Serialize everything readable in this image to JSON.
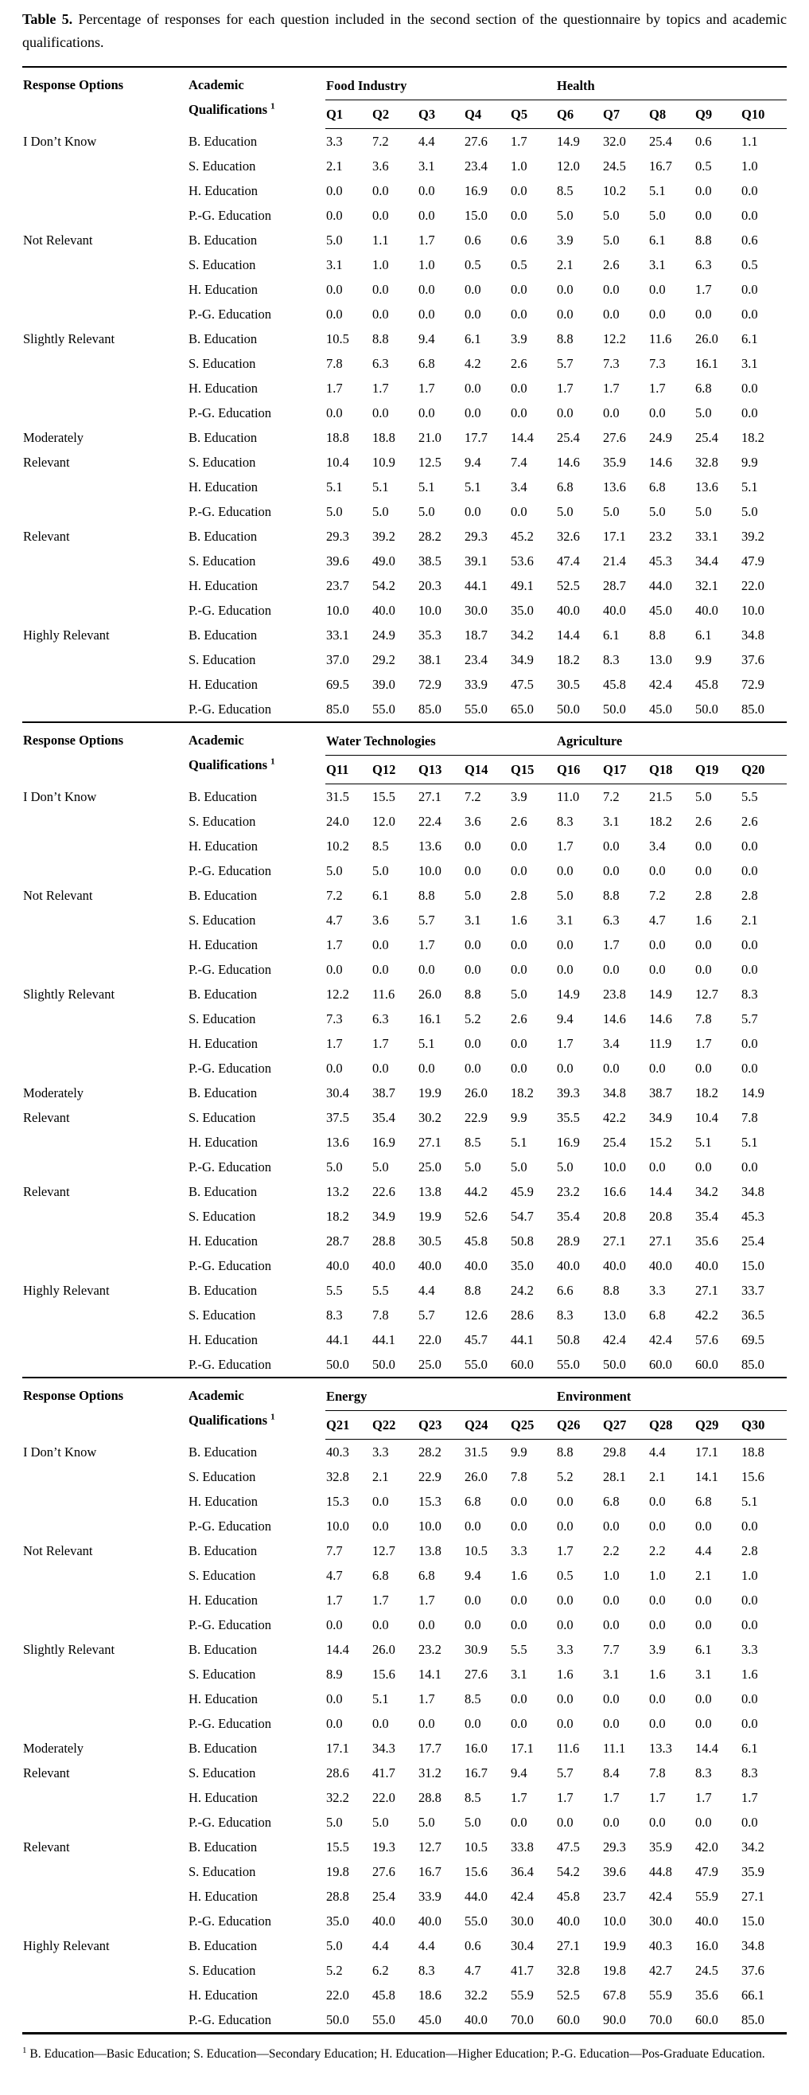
{
  "title": {
    "label": "Table 5.",
    "text": "Percentage of responses for each question included in the second section of the questionnaire by topics and academic qualifications."
  },
  "header": {
    "col1": "Response Options",
    "col2_line1": "Academic",
    "col2_line2": "Qualifications",
    "col2_superscript": "1"
  },
  "response_options": [
    {
      "label": "I Don’t Know",
      "lines": [
        "I Don’t Know"
      ]
    },
    {
      "label": "Not Relevant",
      "lines": [
        "Not Relevant"
      ]
    },
    {
      "label": "Slightly Relevant",
      "lines": [
        "Slightly Relevant"
      ]
    },
    {
      "label": "Moderately Relevant",
      "lines": [
        "Moderately",
        "Relevant"
      ]
    },
    {
      "label": "Relevant",
      "lines": [
        "Relevant"
      ]
    },
    {
      "label": "Highly Relevant",
      "lines": [
        "Highly Relevant"
      ]
    }
  ],
  "qualifications": [
    "B. Education",
    "S. Education",
    "H. Education",
    "P.-G. Education"
  ],
  "sections": [
    {
      "groups": [
        {
          "name": "Food Industry",
          "questions": [
            "Q1",
            "Q2",
            "Q3",
            "Q4",
            "Q5"
          ]
        },
        {
          "name": "Health",
          "questions": [
            "Q6",
            "Q7",
            "Q8",
            "Q9",
            "Q10"
          ]
        }
      ],
      "rows": [
        [
          [
            "3.3",
            "7.2",
            "4.4",
            "27.6",
            "1.7",
            "14.9",
            "32.0",
            "25.4",
            "0.6",
            "1.1"
          ],
          [
            "2.1",
            "3.6",
            "3.1",
            "23.4",
            "1.0",
            "12.0",
            "24.5",
            "16.7",
            "0.5",
            "1.0"
          ],
          [
            "0.0",
            "0.0",
            "0.0",
            "16.9",
            "0.0",
            "8.5",
            "10.2",
            "5.1",
            "0.0",
            "0.0"
          ],
          [
            "0.0",
            "0.0",
            "0.0",
            "15.0",
            "0.0",
            "5.0",
            "5.0",
            "5.0",
            "0.0",
            "0.0"
          ]
        ],
        [
          [
            "5.0",
            "1.1",
            "1.7",
            "0.6",
            "0.6",
            "3.9",
            "5.0",
            "6.1",
            "8.8",
            "0.6"
          ],
          [
            "3.1",
            "1.0",
            "1.0",
            "0.5",
            "0.5",
            "2.1",
            "2.6",
            "3.1",
            "6.3",
            "0.5"
          ],
          [
            "0.0",
            "0.0",
            "0.0",
            "0.0",
            "0.0",
            "0.0",
            "0.0",
            "0.0",
            "1.7",
            "0.0"
          ],
          [
            "0.0",
            "0.0",
            "0.0",
            "0.0",
            "0.0",
            "0.0",
            "0.0",
            "0.0",
            "0.0",
            "0.0"
          ]
        ],
        [
          [
            "10.5",
            "8.8",
            "9.4",
            "6.1",
            "3.9",
            "8.8",
            "12.2",
            "11.6",
            "26.0",
            "6.1"
          ],
          [
            "7.8",
            "6.3",
            "6.8",
            "4.2",
            "2.6",
            "5.7",
            "7.3",
            "7.3",
            "16.1",
            "3.1"
          ],
          [
            "1.7",
            "1.7",
            "1.7",
            "0.0",
            "0.0",
            "1.7",
            "1.7",
            "1.7",
            "6.8",
            "0.0"
          ],
          [
            "0.0",
            "0.0",
            "0.0",
            "0.0",
            "0.0",
            "0.0",
            "0.0",
            "0.0",
            "5.0",
            "0.0"
          ]
        ],
        [
          [
            "18.8",
            "18.8",
            "21.0",
            "17.7",
            "14.4",
            "25.4",
            "27.6",
            "24.9",
            "25.4",
            "18.2"
          ],
          [
            "10.4",
            "10.9",
            "12.5",
            "9.4",
            "7.4",
            "14.6",
            "35.9",
            "14.6",
            "32.8",
            "9.9"
          ],
          [
            "5.1",
            "5.1",
            "5.1",
            "5.1",
            "3.4",
            "6.8",
            "13.6",
            "6.8",
            "13.6",
            "5.1"
          ],
          [
            "5.0",
            "5.0",
            "5.0",
            "0.0",
            "0.0",
            "5.0",
            "5.0",
            "5.0",
            "5.0",
            "5.0"
          ]
        ],
        [
          [
            "29.3",
            "39.2",
            "28.2",
            "29.3",
            "45.2",
            "32.6",
            "17.1",
            "23.2",
            "33.1",
            "39.2"
          ],
          [
            "39.6",
            "49.0",
            "38.5",
            "39.1",
            "53.6",
            "47.4",
            "21.4",
            "45.3",
            "34.4",
            "47.9"
          ],
          [
            "23.7",
            "54.2",
            "20.3",
            "44.1",
            "49.1",
            "52.5",
            "28.7",
            "44.0",
            "32.1",
            "22.0"
          ],
          [
            "10.0",
            "40.0",
            "10.0",
            "30.0",
            "35.0",
            "40.0",
            "40.0",
            "45.0",
            "40.0",
            "10.0"
          ]
        ],
        [
          [
            "33.1",
            "24.9",
            "35.3",
            "18.7",
            "34.2",
            "14.4",
            "6.1",
            "8.8",
            "6.1",
            "34.8"
          ],
          [
            "37.0",
            "29.2",
            "38.1",
            "23.4",
            "34.9",
            "18.2",
            "8.3",
            "13.0",
            "9.9",
            "37.6"
          ],
          [
            "69.5",
            "39.0",
            "72.9",
            "33.9",
            "47.5",
            "30.5",
            "45.8",
            "42.4",
            "45.8",
            "72.9"
          ],
          [
            "85.0",
            "55.0",
            "85.0",
            "55.0",
            "65.0",
            "50.0",
            "50.0",
            "45.0",
            "50.0",
            "85.0"
          ]
        ]
      ]
    },
    {
      "groups": [
        {
          "name": "Water Technologies",
          "questions": [
            "Q11",
            "Q12",
            "Q13",
            "Q14",
            "Q15"
          ]
        },
        {
          "name": "Agriculture",
          "questions": [
            "Q16",
            "Q17",
            "Q18",
            "Q19",
            "Q20"
          ]
        }
      ],
      "rows": [
        [
          [
            "31.5",
            "15.5",
            "27.1",
            "7.2",
            "3.9",
            "11.0",
            "7.2",
            "21.5",
            "5.0",
            "5.5"
          ],
          [
            "24.0",
            "12.0",
            "22.4",
            "3.6",
            "2.6",
            "8.3",
            "3.1",
            "18.2",
            "2.6",
            "2.6"
          ],
          [
            "10.2",
            "8.5",
            "13.6",
            "0.0",
            "0.0",
            "1.7",
            "0.0",
            "3.4",
            "0.0",
            "0.0"
          ],
          [
            "5.0",
            "5.0",
            "10.0",
            "0.0",
            "0.0",
            "0.0",
            "0.0",
            "0.0",
            "0.0",
            "0.0"
          ]
        ],
        [
          [
            "7.2",
            "6.1",
            "8.8",
            "5.0",
            "2.8",
            "5.0",
            "8.8",
            "7.2",
            "2.8",
            "2.8"
          ],
          [
            "4.7",
            "3.6",
            "5.7",
            "3.1",
            "1.6",
            "3.1",
            "6.3",
            "4.7",
            "1.6",
            "2.1"
          ],
          [
            "1.7",
            "0.0",
            "1.7",
            "0.0",
            "0.0",
            "0.0",
            "1.7",
            "0.0",
            "0.0",
            "0.0"
          ],
          [
            "0.0",
            "0.0",
            "0.0",
            "0.0",
            "0.0",
            "0.0",
            "0.0",
            "0.0",
            "0.0",
            "0.0"
          ]
        ],
        [
          [
            "12.2",
            "11.6",
            "26.0",
            "8.8",
            "5.0",
            "14.9",
            "23.8",
            "14.9",
            "12.7",
            "8.3"
          ],
          [
            "7.3",
            "6.3",
            "16.1",
            "5.2",
            "2.6",
            "9.4",
            "14.6",
            "14.6",
            "7.8",
            "5.7"
          ],
          [
            "1.7",
            "1.7",
            "5.1",
            "0.0",
            "0.0",
            "1.7",
            "3.4",
            "11.9",
            "1.7",
            "0.0"
          ],
          [
            "0.0",
            "0.0",
            "0.0",
            "0.0",
            "0.0",
            "0.0",
            "0.0",
            "0.0",
            "0.0",
            "0.0"
          ]
        ],
        [
          [
            "30.4",
            "38.7",
            "19.9",
            "26.0",
            "18.2",
            "39.3",
            "34.8",
            "38.7",
            "18.2",
            "14.9"
          ],
          [
            "37.5",
            "35.4",
            "30.2",
            "22.9",
            "9.9",
            "35.5",
            "42.2",
            "34.9",
            "10.4",
            "7.8"
          ],
          [
            "13.6",
            "16.9",
            "27.1",
            "8.5",
            "5.1",
            "16.9",
            "25.4",
            "15.2",
            "5.1",
            "5.1"
          ],
          [
            "5.0",
            "5.0",
            "25.0",
            "5.0",
            "5.0",
            "5.0",
            "10.0",
            "0.0",
            "0.0",
            "0.0"
          ]
        ],
        [
          [
            "13.2",
            "22.6",
            "13.8",
            "44.2",
            "45.9",
            "23.2",
            "16.6",
            "14.4",
            "34.2",
            "34.8"
          ],
          [
            "18.2",
            "34.9",
            "19.9",
            "52.6",
            "54.7",
            "35.4",
            "20.8",
            "20.8",
            "35.4",
            "45.3"
          ],
          [
            "28.7",
            "28.8",
            "30.5",
            "45.8",
            "50.8",
            "28.9",
            "27.1",
            "27.1",
            "35.6",
            "25.4"
          ],
          [
            "40.0",
            "40.0",
            "40.0",
            "40.0",
            "35.0",
            "40.0",
            "40.0",
            "40.0",
            "40.0",
            "15.0"
          ]
        ],
        [
          [
            "5.5",
            "5.5",
            "4.4",
            "8.8",
            "24.2",
            "6.6",
            "8.8",
            "3.3",
            "27.1",
            "33.7"
          ],
          [
            "8.3",
            "7.8",
            "5.7",
            "12.6",
            "28.6",
            "8.3",
            "13.0",
            "6.8",
            "42.2",
            "36.5"
          ],
          [
            "44.1",
            "44.1",
            "22.0",
            "45.7",
            "44.1",
            "50.8",
            "42.4",
            "42.4",
            "57.6",
            "69.5"
          ],
          [
            "50.0",
            "50.0",
            "25.0",
            "55.0",
            "60.0",
            "55.0",
            "50.0",
            "60.0",
            "60.0",
            "85.0"
          ]
        ]
      ]
    },
    {
      "groups": [
        {
          "name": "Energy",
          "questions": [
            "Q21",
            "Q22",
            "Q23",
            "Q24",
            "Q25"
          ]
        },
        {
          "name": "Environment",
          "questions": [
            "Q26",
            "Q27",
            "Q28",
            "Q29",
            "Q30"
          ]
        }
      ],
      "rows": [
        [
          [
            "40.3",
            "3.3",
            "28.2",
            "31.5",
            "9.9",
            "8.8",
            "29.8",
            "4.4",
            "17.1",
            "18.8"
          ],
          [
            "32.8",
            "2.1",
            "22.9",
            "26.0",
            "7.8",
            "5.2",
            "28.1",
            "2.1",
            "14.1",
            "15.6"
          ],
          [
            "15.3",
            "0.0",
            "15.3",
            "6.8",
            "0.0",
            "0.0",
            "6.8",
            "0.0",
            "6.8",
            "5.1"
          ],
          [
            "10.0",
            "0.0",
            "10.0",
            "0.0",
            "0.0",
            "0.0",
            "0.0",
            "0.0",
            "0.0",
            "0.0"
          ]
        ],
        [
          [
            "7.7",
            "12.7",
            "13.8",
            "10.5",
            "3.3",
            "1.7",
            "2.2",
            "2.2",
            "4.4",
            "2.8"
          ],
          [
            "4.7",
            "6.8",
            "6.8",
            "9.4",
            "1.6",
            "0.5",
            "1.0",
            "1.0",
            "2.1",
            "1.0"
          ],
          [
            "1.7",
            "1.7",
            "1.7",
            "0.0",
            "0.0",
            "0.0",
            "0.0",
            "0.0",
            "0.0",
            "0.0"
          ],
          [
            "0.0",
            "0.0",
            "0.0",
            "0.0",
            "0.0",
            "0.0",
            "0.0",
            "0.0",
            "0.0",
            "0.0"
          ]
        ],
        [
          [
            "14.4",
            "26.0",
            "23.2",
            "30.9",
            "5.5",
            "3.3",
            "7.7",
            "3.9",
            "6.1",
            "3.3"
          ],
          [
            "8.9",
            "15.6",
            "14.1",
            "27.6",
            "3.1",
            "1.6",
            "3.1",
            "1.6",
            "3.1",
            "1.6"
          ],
          [
            "0.0",
            "5.1",
            "1.7",
            "8.5",
            "0.0",
            "0.0",
            "0.0",
            "0.0",
            "0.0",
            "0.0"
          ],
          [
            "0.0",
            "0.0",
            "0.0",
            "0.0",
            "0.0",
            "0.0",
            "0.0",
            "0.0",
            "0.0",
            "0.0"
          ]
        ],
        [
          [
            "17.1",
            "34.3",
            "17.7",
            "16.0",
            "17.1",
            "11.6",
            "11.1",
            "13.3",
            "14.4",
            "6.1"
          ],
          [
            "28.6",
            "41.7",
            "31.2",
            "16.7",
            "9.4",
            "5.7",
            "8.4",
            "7.8",
            "8.3",
            "8.3"
          ],
          [
            "32.2",
            "22.0",
            "28.8",
            "8.5",
            "1.7",
            "1.7",
            "1.7",
            "1.7",
            "1.7",
            "1.7"
          ],
          [
            "5.0",
            "5.0",
            "5.0",
            "5.0",
            "0.0",
            "0.0",
            "0.0",
            "0.0",
            "0.0",
            "0.0"
          ]
        ],
        [
          [
            "15.5",
            "19.3",
            "12.7",
            "10.5",
            "33.8",
            "47.5",
            "29.3",
            "35.9",
            "42.0",
            "34.2"
          ],
          [
            "19.8",
            "27.6",
            "16.7",
            "15.6",
            "36.4",
            "54.2",
            "39.6",
            "44.8",
            "47.9",
            "35.9"
          ],
          [
            "28.8",
            "25.4",
            "33.9",
            "44.0",
            "42.4",
            "45.8",
            "23.7",
            "42.4",
            "55.9",
            "27.1"
          ],
          [
            "35.0",
            "40.0",
            "40.0",
            "55.0",
            "30.0",
            "40.0",
            "10.0",
            "30.0",
            "40.0",
            "15.0"
          ]
        ],
        [
          [
            "5.0",
            "4.4",
            "4.4",
            "0.6",
            "30.4",
            "27.1",
            "19.9",
            "40.3",
            "16.0",
            "34.8"
          ],
          [
            "5.2",
            "6.2",
            "8.3",
            "4.7",
            "41.7",
            "32.8",
            "19.8",
            "42.7",
            "24.5",
            "37.6"
          ],
          [
            "22.0",
            "45.8",
            "18.6",
            "32.2",
            "55.9",
            "52.5",
            "67.8",
            "55.9",
            "35.6",
            "66.1"
          ],
          [
            "50.0",
            "55.0",
            "45.0",
            "40.0",
            "70.0",
            "60.0",
            "90.0",
            "70.0",
            "60.0",
            "85.0"
          ]
        ]
      ]
    }
  ],
  "footnote": {
    "superscript": "1",
    "text": "B. Education—Basic Education; S. Education—Secondary Education; H. Education—Higher Education; P.-G. Education—Pos-Graduate Education."
  }
}
